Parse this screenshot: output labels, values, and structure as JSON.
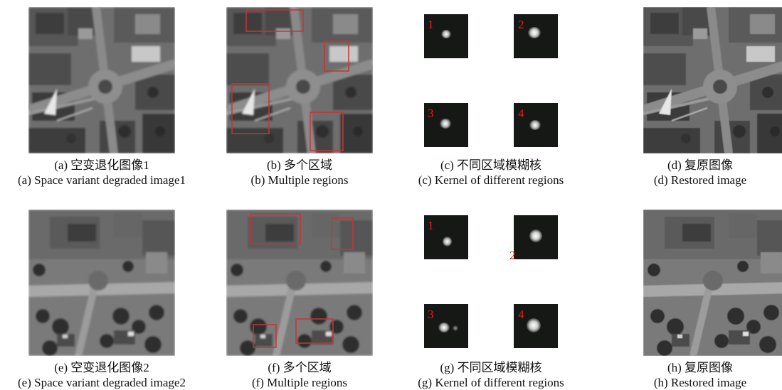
{
  "row1": {
    "panels": [
      {
        "id": "a",
        "zh": "(a) 空变退化图像1",
        "en": "(a) Space variant degraded image1"
      },
      {
        "id": "b",
        "zh": "(b) 多个区域",
        "en": "(b) Multiple regions"
      },
      {
        "id": "c",
        "zh": "(c) 不同区域模糊核",
        "en": "(c) Kernel of different regions"
      },
      {
        "id": "d",
        "zh": "(d) 复原图像",
        "en": "(d) Restored image"
      }
    ],
    "kernel_labels": [
      "1",
      "2",
      "3",
      "4"
    ]
  },
  "row2": {
    "panels": [
      {
        "id": "e",
        "zh": "(e) 空变退化图像2",
        "en": "(e) Space variant degraded image2"
      },
      {
        "id": "f",
        "zh": "(f) 多个区域",
        "en": "(f) Multiple regions"
      },
      {
        "id": "g",
        "zh": "(g) 不同区域模糊核",
        "en": "(g) Kernel of different regions"
      },
      {
        "id": "h",
        "zh": "(h) 复原图像",
        "en": "(h) Restored image"
      }
    ],
    "kernel_labels": [
      "1",
      "2",
      "3",
      "4"
    ]
  },
  "colors": {
    "region_box": "#c83434",
    "kernel_bg": "#161816",
    "kernel_label": "#e02020"
  }
}
